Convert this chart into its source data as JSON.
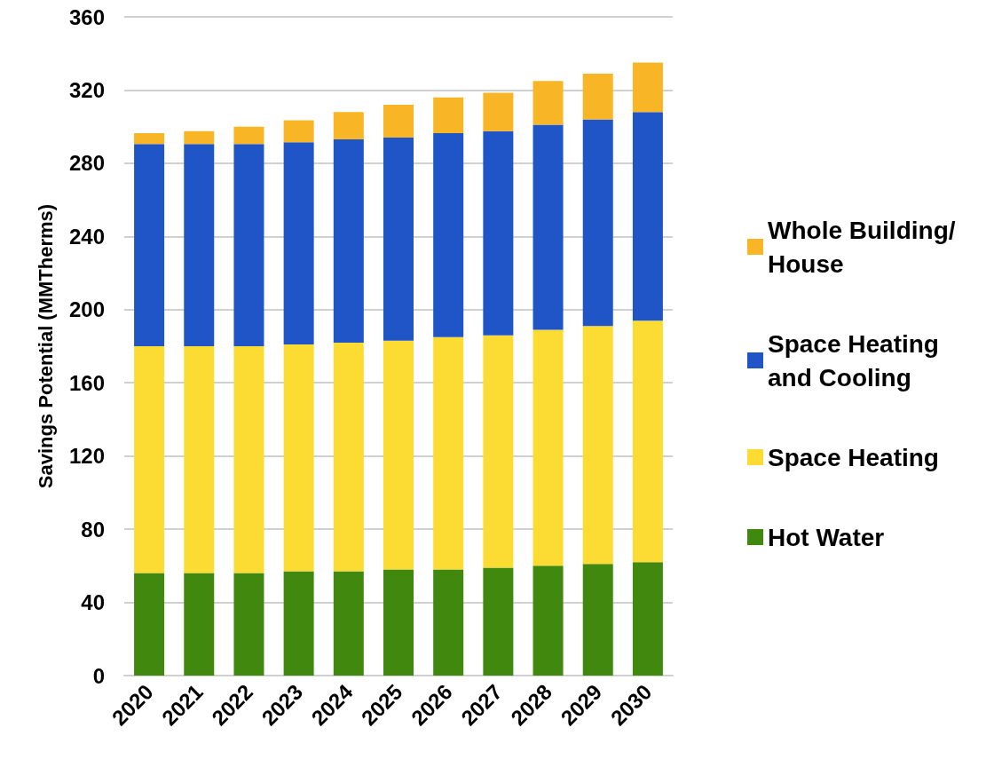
{
  "chart_data": {
    "type": "bar",
    "ylabel": "Savings Potential (MMTherms)",
    "categories": [
      "2020",
      "2021",
      "2022",
      "2023",
      "2024",
      "2025",
      "2026",
      "2027",
      "2028",
      "2029",
      "2030"
    ],
    "series": [
      {
        "name": "Hot Water",
        "color": "#41880f",
        "values": [
          56,
          56,
          56,
          57,
          57,
          58,
          58,
          59,
          60,
          61,
          62
        ]
      },
      {
        "name": "Space Heating",
        "color": "#fcdc32",
        "values": [
          124,
          124,
          124,
          124,
          125,
          125,
          127,
          127,
          129,
          130,
          132
        ]
      },
      {
        "name": "Space Heating and Cooling",
        "color": "#1f55c7",
        "values": [
          110.5,
          110.5,
          110.5,
          110.5,
          111,
          111,
          111.5,
          111.5,
          112,
          113,
          114
        ]
      },
      {
        "name": "Whole Building/House",
        "color": "#f8b525",
        "values": [
          6,
          7,
          9.5,
          12,
          15,
          18,
          19.5,
          21,
          24,
          25,
          27
        ]
      }
    ],
    "stacked": true,
    "ylim": [
      0,
      360
    ],
    "yticks": [
      0,
      40,
      80,
      120,
      160,
      200,
      240,
      280,
      320,
      360
    ],
    "grid": "y",
    "legend": "right"
  }
}
